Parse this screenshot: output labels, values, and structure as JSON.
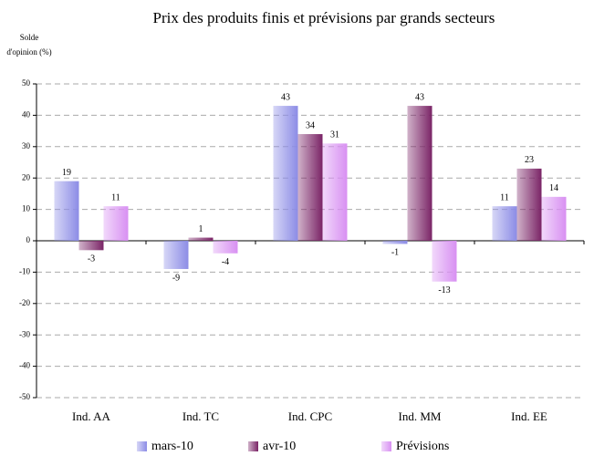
{
  "chart_data": {
    "type": "bar",
    "title": "Prix des produits finis et prévisions par grands secteurs",
    "y_label": [
      "Solde",
      "d'opinion (%)"
    ],
    "categories": [
      "Ind. AA",
      "Ind. TC",
      "Ind. CPC",
      "Ind. MM",
      "Ind. EE"
    ],
    "series": [
      {
        "name": "mars-10",
        "color": "#8c8ce6",
        "values": [
          19,
          -9,
          43,
          -1,
          11
        ]
      },
      {
        "name": "avr-10",
        "color": "#7a2466",
        "values": [
          -3,
          1,
          34,
          43,
          23
        ]
      },
      {
        "name": "Prévisions",
        "color": "#d890f2",
        "values": [
          11,
          -4,
          31,
          -13,
          14
        ]
      }
    ],
    "ylim": [
      -50,
      50
    ],
    "yticks": [
      -50,
      -40,
      -30,
      -20,
      -10,
      0,
      10,
      20,
      30,
      40,
      50
    ],
    "grid": true,
    "legend": "bottom"
  }
}
